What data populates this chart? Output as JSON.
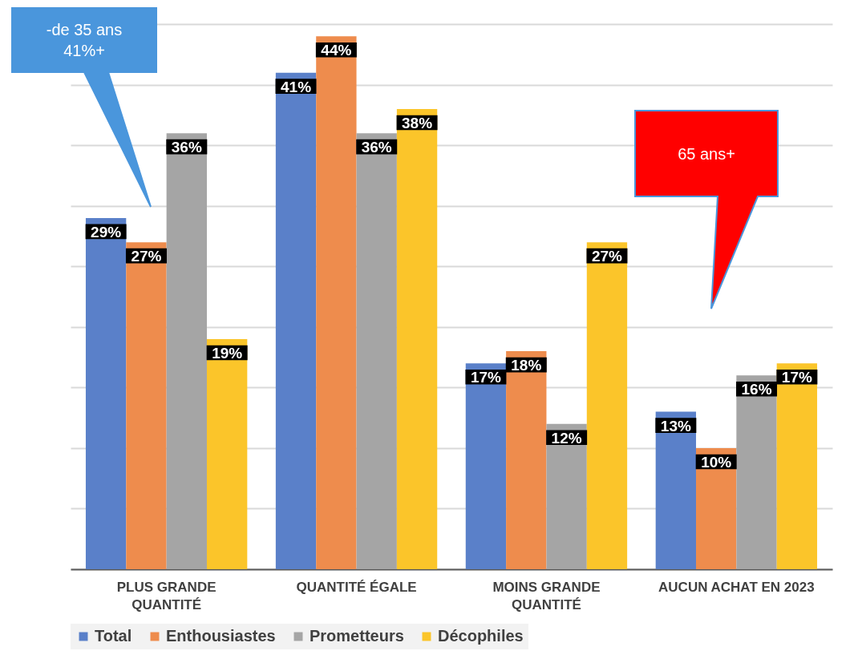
{
  "chart_data": {
    "type": "bar",
    "categories": [
      "PLUS GRANDE QUANTITÉ",
      "QUANTITÉ ÉGALE",
      "MOINS GRANDE QUANTITÉ",
      "AUCUN ACHAT EN 2023"
    ],
    "series": [
      {
        "name": "Total",
        "color": "#5a80c9",
        "values": [
          29,
          41,
          17,
          13
        ],
        "value_labels": [
          "29%",
          "41%",
          "17%",
          "13%"
        ]
      },
      {
        "name": "Enthousiastes",
        "color": "#ee8c4d",
        "values": [
          27,
          44,
          18,
          10
        ],
        "value_labels": [
          "27%",
          "44%",
          "18%",
          "10%"
        ]
      },
      {
        "name": "Prometteurs",
        "color": "#a5a5a5",
        "values": [
          36,
          36,
          12,
          16
        ],
        "value_labels": [
          "36%",
          "36%",
          "12%",
          "16%"
        ]
      },
      {
        "name": "Décophiles",
        "color": "#fbc52a",
        "values": [
          19,
          38,
          27,
          17
        ],
        "value_labels": [
          "19%",
          "38%",
          "27%",
          "17%"
        ]
      }
    ],
    "ylim": [
      0,
      47
    ],
    "yticks": [
      {
        "value": 0,
        "label": null
      },
      {
        "value": 5,
        "label": null
      },
      {
        "value": 10,
        "label": null
      },
      {
        "value": 15,
        "label": null
      },
      {
        "value": 20,
        "label": null
      },
      {
        "value": 25,
        "label": null
      },
      {
        "value": 30,
        "label": null
      },
      {
        "value": 35,
        "label": null
      },
      {
        "value": 40,
        "label": null
      },
      {
        "value": 45,
        "label": null
      }
    ],
    "tick_labels": "x",
    "grid": "y",
    "legend": "bottom",
    "annotations": [
      "-de 35 ans\n41%+",
      "65 ans+"
    ]
  }
}
